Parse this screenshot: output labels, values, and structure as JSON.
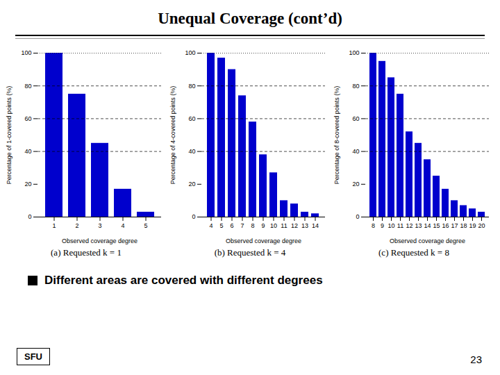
{
  "title": "Unequal Coverage (cont’d)",
  "bullet_text": "Different areas are covered with different degrees",
  "logo": "SFU",
  "page_number": "23",
  "chart_data": [
    {
      "type": "bar",
      "caption": "(a) Requested k = 1",
      "xlabel": "Observed coverage degree",
      "ylabel": "Percentage of 1-covered points (%)",
      "categories": [
        "1",
        "2",
        "3",
        "4",
        "5"
      ],
      "values": [
        100,
        75,
        45,
        17,
        3
      ],
      "color": "#0000CD",
      "ylim": [
        0,
        100
      ],
      "yticks": [
        0,
        20,
        40,
        60,
        80,
        100
      ],
      "dashed_lines": [
        40,
        60,
        80
      ],
      "dotted_lines": [
        100
      ]
    },
    {
      "type": "bar",
      "caption": "(b) Requested k = 4",
      "xlabel": "Observed coverage degree",
      "ylabel": "Percentage of 4-covered points (%)",
      "categories": [
        "4",
        "5",
        "6",
        "7",
        "8",
        "9",
        "10",
        "11",
        "12",
        "13",
        "14"
      ],
      "values": [
        100,
        97,
        90,
        74,
        58,
        38,
        27,
        10,
        8,
        3,
        2
      ],
      "color": "#0000CD",
      "ylim": [
        0,
        100
      ],
      "yticks": [
        0,
        20,
        40,
        60,
        80,
        100
      ],
      "dashed_lines": [
        40,
        60,
        80
      ],
      "dotted_lines": [
        100
      ]
    },
    {
      "type": "bar",
      "caption": "(c) Requested k = 8",
      "xlabel": "Observed coverage degree",
      "ylabel": "Percentage of 8-covered points (%)",
      "categories": [
        "8",
        "9",
        "10",
        "11",
        "12",
        "13",
        "14",
        "15",
        "16",
        "17",
        "18",
        "19",
        "20"
      ],
      "values": [
        100,
        95,
        85,
        75,
        52,
        45,
        35,
        25,
        17,
        10,
        7,
        5,
        3
      ],
      "color": "#0000CD",
      "ylim": [
        0,
        100
      ],
      "yticks": [
        0,
        20,
        40,
        60,
        80,
        100
      ],
      "dashed_lines": [
        40,
        60,
        80
      ],
      "dotted_lines": [
        100
      ]
    }
  ]
}
